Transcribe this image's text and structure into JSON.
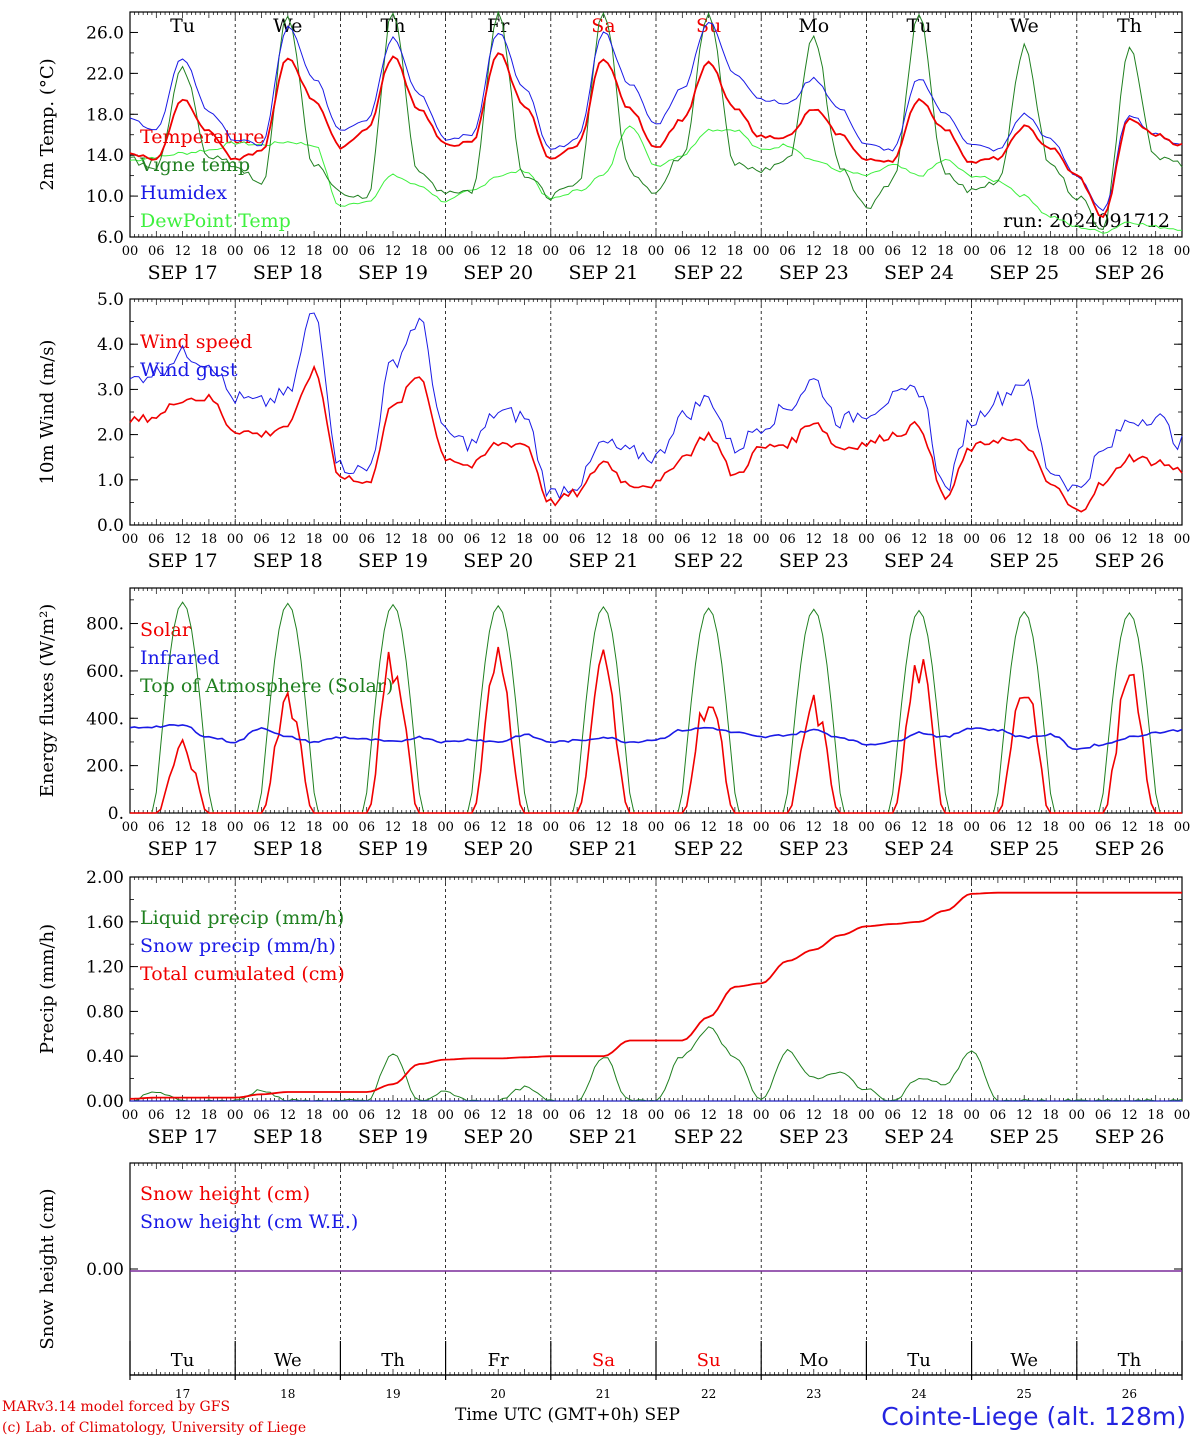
{
  "days": [
    "SEP 17",
    "SEP 18",
    "SEP 19",
    "SEP 20",
    "SEP 21",
    "SEP 22",
    "SEP 23",
    "SEP 24",
    "SEP 25",
    "SEP 26"
  ],
  "weekdays": [
    "Tu",
    "We",
    "Th",
    "Fr",
    "Sa",
    "Su",
    "Mo",
    "Tu",
    "We",
    "Th"
  ],
  "day_numbers": [
    "17",
    "18",
    "19",
    "20",
    "21",
    "22",
    "23",
    "24",
    "25",
    "26"
  ],
  "hour_labels": [
    "00",
    "06",
    "12",
    "18"
  ],
  "weekend_indices": [
    4,
    5
  ],
  "colors": {
    "red": "#f00000",
    "green": "#208020",
    "blue": "#1a1ae6",
    "lightgreen": "#3ef03e",
    "purple": "#7a2a9a"
  },
  "run_label": "run: 2024091712",
  "footer": {
    "model": "MARv3.14 model forced by GFS",
    "lab": "(c) Lab. of Climatology, University of Liege",
    "time": "Time UTC (GMT+0h) SEP",
    "station": "Cointe-Liege (alt. 128m)"
  },
  "chart_data": [
    {
      "type": "line",
      "ylabel": "2m Temp. (°C)",
      "ylim": [
        6,
        28
      ],
      "yticks": [
        "6.0",
        "10.0",
        "14.0",
        "18.0",
        "22.0",
        "26.0"
      ],
      "yticks_values": [
        6,
        10,
        14,
        18,
        22,
        26
      ],
      "legend": [
        "Temperature",
        "Vigne temp",
        "Humidex",
        "DewPoint Temp"
      ],
      "x_unit": "hours since 2024-09-17 00 UTC, sampled every 6 h",
      "series": [
        {
          "name": "Temperature",
          "color": "red",
          "values": [
            14.2,
            13.6,
            19.5,
            16.3,
            13.5,
            14.4,
            23.5,
            19.4,
            14.8,
            16.5,
            23.6,
            18.5,
            15.0,
            15.2,
            24.0,
            18.9,
            13.5,
            14.9,
            23.5,
            18.5,
            14.8,
            17.5,
            23.0,
            18.5,
            15.8,
            15.8,
            18.5,
            16.0,
            13.5,
            13.5,
            19.5,
            16.5,
            13.3,
            13.7,
            16.8,
            14.7,
            12.0,
            8.0,
            17.5,
            16.0,
            15.0
          ]
        },
        {
          "name": "Vigne temp",
          "color": "green",
          "values": [
            13.6,
            12.8,
            22.3,
            14.0,
            13.0,
            11.0,
            27.5,
            13.0,
            10.5,
            9.5,
            28.0,
            12.0,
            10.5,
            10.5,
            28.0,
            12.0,
            10.0,
            11.0,
            28.0,
            12.5,
            10.5,
            14.0,
            28.0,
            13.0,
            12.5,
            13.5,
            25.5,
            13.0,
            9.0,
            11.5,
            27.5,
            12.0,
            10.5,
            11.5,
            24.5,
            13.0,
            10.0,
            7.0,
            24.5,
            14.0,
            13.0
          ]
        },
        {
          "name": "Humidex",
          "color": "blue",
          "values": [
            17.5,
            16.5,
            23.5,
            18.3,
            15.5,
            15.0,
            26.5,
            21.5,
            16.5,
            17.5,
            25.5,
            20.0,
            15.5,
            16.0,
            26.0,
            20.5,
            14.5,
            15.5,
            26.0,
            21.0,
            17.0,
            20.5,
            27.0,
            22.0,
            19.5,
            19.0,
            21.5,
            18.5,
            15.0,
            14.5,
            21.5,
            18.0,
            15.0,
            14.5,
            18.0,
            15.5,
            12.0,
            8.5,
            18.0,
            16.0,
            15.0
          ]
        },
        {
          "name": "DewPoint Temp",
          "color": "lightgreen",
          "values": [
            13.5,
            13.8,
            14.2,
            14.5,
            15.2,
            15.0,
            15.3,
            15.0,
            9.0,
            9.5,
            12.0,
            11.0,
            9.5,
            10.5,
            12.0,
            12.5,
            9.7,
            10.5,
            12.0,
            17.0,
            13.0,
            14.0,
            16.5,
            16.5,
            14.5,
            15.0,
            13.5,
            12.5,
            12.0,
            13.0,
            12.0,
            13.5,
            12.0,
            11.5,
            10.0,
            8.0,
            7.0,
            6.5,
            7.5,
            7.0,
            6.8
          ]
        }
      ]
    },
    {
      "type": "line",
      "ylabel": "10m Wind (m/s)",
      "ylim": [
        0,
        5
      ],
      "yticks": [
        "0.0",
        "1.0",
        "2.0",
        "3.0",
        "4.0",
        "5.0"
      ],
      "yticks_values": [
        0,
        1,
        2,
        3,
        4,
        5
      ],
      "legend": [
        "Wind speed",
        "Wind gust"
      ],
      "x_unit": "hours since 2024-09-17 00 UTC, sampled every 6 h",
      "series": [
        {
          "name": "Wind speed",
          "color": "red",
          "values": [
            2.3,
            2.4,
            2.8,
            2.8,
            2.1,
            2.0,
            2.2,
            3.4,
            1.1,
            0.9,
            2.6,
            3.3,
            1.5,
            1.3,
            1.8,
            1.8,
            0.5,
            0.7,
            1.4,
            0.9,
            0.9,
            1.5,
            2.0,
            1.1,
            1.7,
            1.8,
            2.3,
            1.7,
            1.8,
            2.0,
            2.2,
            0.6,
            1.7,
            1.9,
            1.8,
            0.9,
            0.3,
            0.9,
            1.5,
            1.4,
            1.2
          ]
        },
        {
          "name": "Wind gust",
          "color": "blue",
          "values": [
            3.2,
            3.4,
            3.8,
            3.6,
            2.8,
            2.7,
            2.9,
            4.7,
            1.3,
            1.2,
            3.6,
            4.5,
            2.0,
            1.8,
            2.5,
            2.4,
            0.7,
            0.9,
            1.8,
            1.6,
            1.5,
            2.4,
            2.8,
            1.7,
            2.2,
            2.6,
            3.2,
            2.3,
            2.5,
            2.8,
            3.0,
            0.8,
            2.3,
            2.8,
            3.2,
            1.2,
            0.8,
            1.6,
            2.3,
            2.4,
            1.8
          ]
        }
      ]
    },
    {
      "type": "line",
      "ylabel": "Energy fluxes (W/m²)",
      "ylim": [
        0,
        950
      ],
      "yticks": [
        "0.",
        "200.",
        "400.",
        "600.",
        "800."
      ],
      "yticks_values": [
        0,
        200,
        400,
        600,
        800
      ],
      "legend": [
        "Solar",
        "Infrared",
        "Top of Atmosphere (Solar)"
      ],
      "solar_noon_peaks": [
        270,
        490,
        640,
        630,
        620,
        480,
        440,
        610,
        560,
        540
      ],
      "toa_noon_peaks": [
        890,
        885,
        880,
        875,
        870,
        865,
        860,
        855,
        850,
        845
      ],
      "series": [
        {
          "name": "Infrared",
          "color": "blue",
          "values": [
            360,
            365,
            370,
            320,
            300,
            360,
            320,
            300,
            320,
            310,
            300,
            320,
            300,
            310,
            300,
            330,
            300,
            305,
            320,
            300,
            310,
            350,
            360,
            340,
            320,
            330,
            350,
            320,
            290,
            300,
            340,
            320,
            360,
            350,
            320,
            330,
            270,
            290,
            320,
            340,
            350
          ]
        }
      ]
    },
    {
      "type": "line",
      "ylabel": "Precip (mm/h)",
      "ylim": [
        0,
        2
      ],
      "yticks": [
        "0.00",
        "0.40",
        "0.80",
        "1.20",
        "1.60",
        "2.00"
      ],
      "yticks_values": [
        0,
        0.4,
        0.8,
        1.2,
        1.6,
        2.0
      ],
      "legend": [
        "Liquid precip (mm/h)",
        "Snow precip (mm/h)",
        "Total cumulated (cm)"
      ],
      "series": [
        {
          "name": "Liquid precip (mm/h)",
          "color": "green",
          "values": [
            0,
            0.08,
            0,
            0,
            0,
            0.1,
            0,
            0,
            0,
            0,
            0.42,
            0,
            0.08,
            0,
            0,
            0.12,
            0,
            0,
            0.4,
            0,
            0,
            0.4,
            0.65,
            0.4,
            0,
            0.45,
            0.2,
            0.25,
            0.1,
            0,
            0.2,
            0.15,
            0.45,
            0,
            0,
            0,
            0,
            0,
            0,
            0,
            0
          ]
        },
        {
          "name": "Total cumulated (cm)",
          "color": "red",
          "values": [
            0.02,
            0.03,
            0.03,
            0.03,
            0.03,
            0.06,
            0.08,
            0.08,
            0.08,
            0.08,
            0.15,
            0.33,
            0.37,
            0.38,
            0.38,
            0.39,
            0.4,
            0.4,
            0.4,
            0.54,
            0.54,
            0.54,
            0.75,
            1.02,
            1.05,
            1.25,
            1.35,
            1.48,
            1.56,
            1.58,
            1.6,
            1.7,
            1.85,
            1.86,
            1.86,
            1.86,
            1.86,
            1.86,
            1.86,
            1.86,
            1.86
          ]
        }
      ]
    },
    {
      "type": "line",
      "ylabel": "Snow height (cm)",
      "yticks": [
        "0.00"
      ],
      "yticks_values": [
        0
      ],
      "legend": [
        "Snow height (cm)",
        "Snow height (cm W.E.)"
      ],
      "series": [
        {
          "name": "Snow height (cm)",
          "color": "red",
          "values": [
            0,
            0
          ]
        },
        {
          "name": "Snow height (cm W.E.)",
          "color": "blue",
          "values": [
            0,
            0
          ]
        }
      ]
    }
  ]
}
